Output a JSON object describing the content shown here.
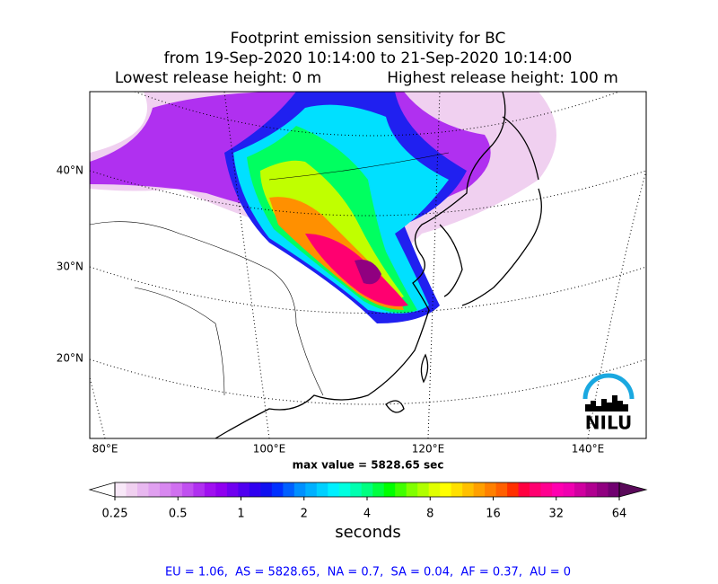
{
  "header": {
    "title_lines": [
      "Footprint emission sensitivity for BC",
      "from 19-Sep-2020 10:14:00 to 21-Sep-2020 10:14:00",
      "Lowest release height: 0 m",
      "Highest release height: 100 m"
    ]
  },
  "map": {
    "lat_labels": [
      "40°N",
      "30°N",
      "20°N"
    ],
    "lon_labels": [
      "80°E",
      "100°E",
      "120°E",
      "140°E"
    ],
    "max_value_label": "max value = 5828.65 sec",
    "logo": "NILU"
  },
  "colorbar": {
    "ticks": [
      0.25,
      0.5,
      1,
      2,
      4,
      8,
      16,
      32,
      64
    ],
    "log_scale": true,
    "label": "seconds",
    "under_color": "#ffffff",
    "over_color": "#5a0a5a",
    "colors": [
      "#f8e8f8",
      "#f0d0f0",
      "#e8b8f0",
      "#e0a0f0",
      "#d888f0",
      "#d070f0",
      "#c050f0",
      "#b030f0",
      "#a010f0",
      "#9000f0",
      "#7000f0",
      "#5000f0",
      "#3000f0",
      "#1010f0",
      "#0030ff",
      "#0060ff",
      "#0090ff",
      "#00b0ff",
      "#00d0ff",
      "#00f0ff",
      "#00ffe0",
      "#00ffb0",
      "#00ff80",
      "#00ff40",
      "#00ff00",
      "#40ff00",
      "#80ff00",
      "#b0ff00",
      "#e0ff00",
      "#ffff00",
      "#ffe000",
      "#ffc000",
      "#ffa000",
      "#ff8000",
      "#ff6000",
      "#ff3000",
      "#ff0040",
      "#ff0070",
      "#ff0090",
      "#ff00b0",
      "#f000b0",
      "#d000a0",
      "#b00090",
      "#900080",
      "#700070"
    ]
  },
  "footer": "EU = 1.06,  AS = 5828.65,  NA = 0.7,  SA = 0.04,  AF = 0.37,  AU = 0"
}
